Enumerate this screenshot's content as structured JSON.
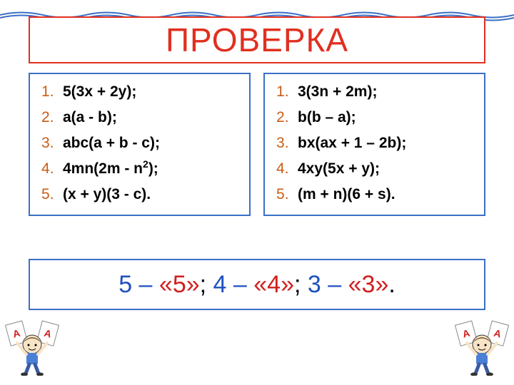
{
  "colors": {
    "title_border": "#e03020",
    "title_text": "#e03020",
    "wave": "#3b6fc6",
    "col_border": "#3b6fc6",
    "list_number": "#c95d15",
    "grading_border": "#3b6fc6",
    "blue": "#2050c0",
    "red": "#d02020",
    "black": "#000000"
  },
  "title": "ПРОВЕРКА",
  "left_list": [
    "5(3x + 2y);",
    "a(a - b);",
    "abc(a + b - c);",
    "4mn(2m - n²);",
    "(x + y)(3 - c)."
  ],
  "right_list": [
    "3(3n + 2m);",
    "b(b – a);",
    "bx(ax + 1 – 2b);",
    "4xy(5x + y);",
    "(m + n)(6 + s)."
  ],
  "grading": {
    "parts": [
      {
        "text": "5 – ",
        "color": "blue"
      },
      {
        "text": "«5»",
        "color": "red"
      },
      {
        "text": "; ",
        "color": "black"
      },
      {
        "text": "4 – ",
        "color": "blue"
      },
      {
        "text": "«4»",
        "color": "red"
      },
      {
        "text": "; ",
        "color": "black"
      },
      {
        "text": "3 – ",
        "color": "blue"
      },
      {
        "text": "«3»",
        "color": "red"
      },
      {
        "text": ".",
        "color": "black"
      }
    ]
  }
}
